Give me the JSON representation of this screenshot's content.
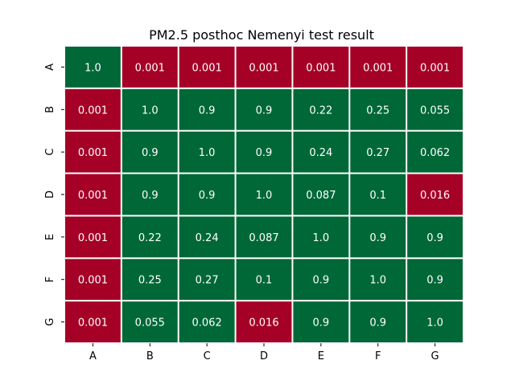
{
  "chart_data": {
    "type": "heatmap",
    "title": "PM2.5 posthoc Nemenyi test result",
    "x_labels": [
      "A",
      "B",
      "C",
      "D",
      "E",
      "F",
      "G"
    ],
    "y_labels": [
      "A",
      "B",
      "C",
      "D",
      "E",
      "F",
      "G"
    ],
    "value_labels": [
      [
        "1.0",
        "0.001",
        "0.001",
        "0.001",
        "0.001",
        "0.001",
        "0.001"
      ],
      [
        "0.001",
        "1.0",
        "0.9",
        "0.9",
        "0.22",
        "0.25",
        "0.055"
      ],
      [
        "0.001",
        "0.9",
        "1.0",
        "0.9",
        "0.24",
        "0.27",
        "0.062"
      ],
      [
        "0.001",
        "0.9",
        "0.9",
        "1.0",
        "0.087",
        "0.1",
        "0.016"
      ],
      [
        "0.001",
        "0.22",
        "0.24",
        "0.087",
        "1.0",
        "0.9",
        "0.9"
      ],
      [
        "0.001",
        "0.25",
        "0.27",
        "0.1",
        "0.9",
        "1.0",
        "0.9"
      ],
      [
        "0.001",
        "0.055",
        "0.062",
        "0.016",
        "0.9",
        "0.9",
        "1.0"
      ]
    ],
    "values": [
      [
        1.0,
        0.001,
        0.001,
        0.001,
        0.001,
        0.001,
        0.001
      ],
      [
        0.001,
        1.0,
        0.9,
        0.9,
        0.22,
        0.25,
        0.055
      ],
      [
        0.001,
        0.9,
        1.0,
        0.9,
        0.24,
        0.27,
        0.062
      ],
      [
        0.001,
        0.9,
        0.9,
        1.0,
        0.087,
        0.1,
        0.016
      ],
      [
        0.001,
        0.22,
        0.24,
        0.087,
        1.0,
        0.9,
        0.9
      ],
      [
        0.001,
        0.25,
        0.27,
        0.1,
        0.9,
        1.0,
        0.9
      ],
      [
        0.001,
        0.055,
        0.062,
        0.016,
        0.9,
        0.9,
        1.0
      ]
    ],
    "colors": {
      "high": "#006837",
      "low": "#a50026",
      "diagonal_first": "#006837",
      "cell_text": "#ffffff",
      "grid": "#ffffff"
    },
    "color_rule": {
      "low_threshold": 0.05,
      "diagonal_first_cell_uses_high": true
    },
    "grid": false,
    "legend": "none"
  }
}
